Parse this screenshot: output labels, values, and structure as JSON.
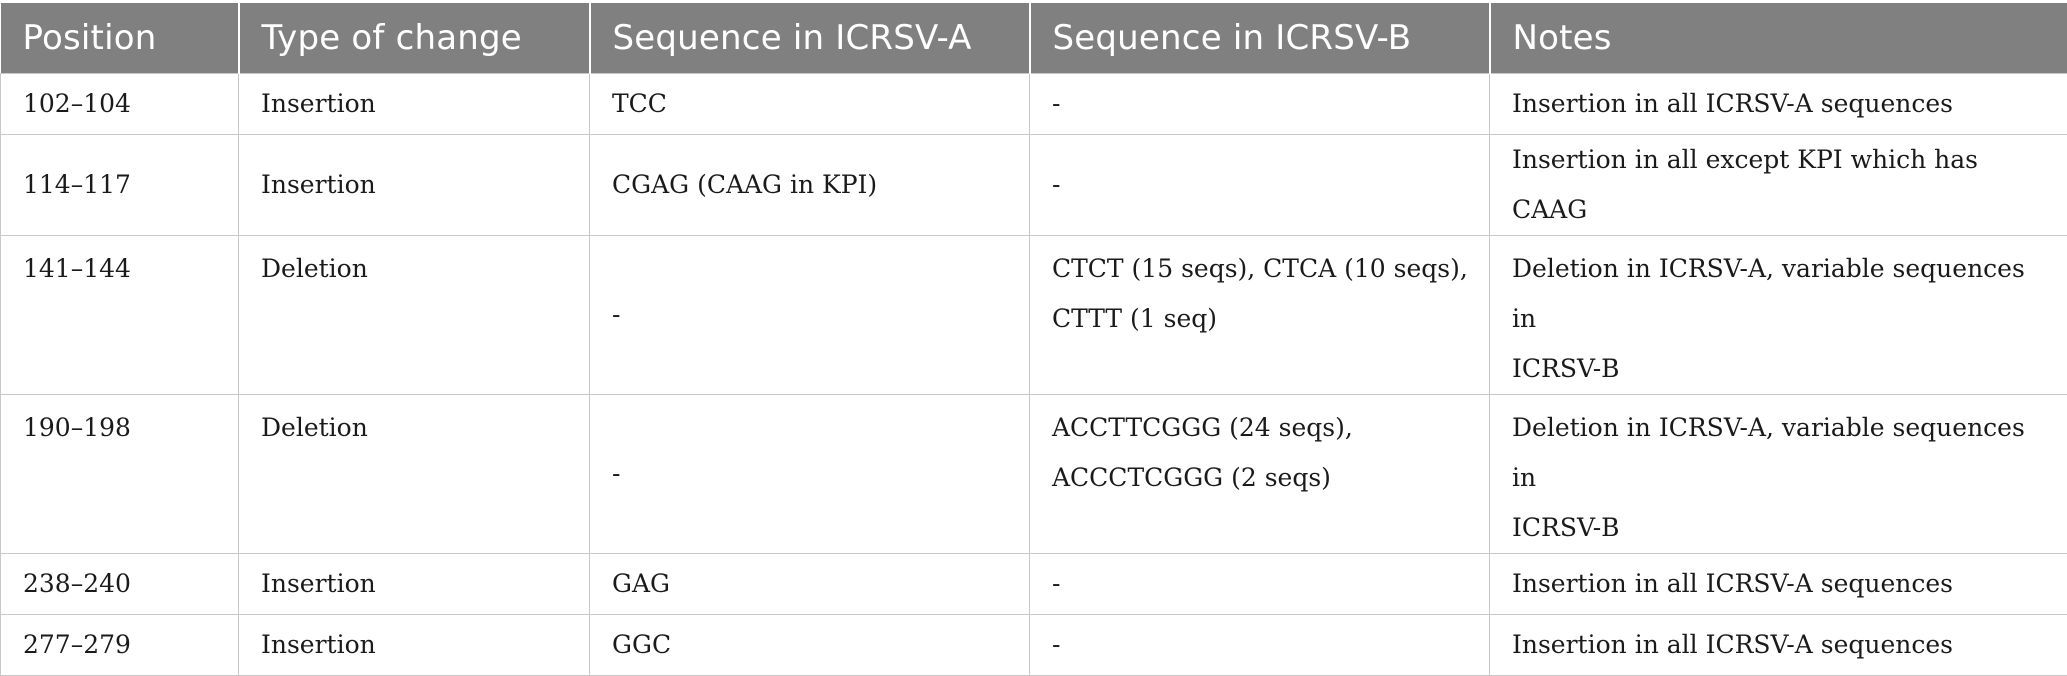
{
  "table": {
    "headers": [
      "Position",
      "Type of change",
      "Sequence in ICRSV-A",
      "Sequence in ICRSV-B",
      "Notes"
    ],
    "rows": [
      {
        "position": "102–104",
        "type": "Insertion",
        "seq_a": "TCC",
        "seq_b": "-",
        "notes": "Insertion in all ICRSV-A sequences"
      },
      {
        "position": "114–117",
        "type": "Insertion",
        "seq_a": "CGAG (CAAG in KPI)",
        "seq_b": "-",
        "notes": "Insertion in all except KPI which has CAAG"
      },
      {
        "position": "141–144",
        "type": "Deletion",
        "seq_a": "-",
        "seq_b_lines": [
          "CTCT (15 seqs), CTCA (10 seqs),",
          "CTTT (1 seq)"
        ],
        "notes_lines": [
          "Deletion in ICRSV-A, variable sequences in",
          "ICRSV-B"
        ]
      },
      {
        "position": "190–198",
        "type": "Deletion",
        "seq_a": "-",
        "seq_b_lines": [
          "ACCTTCGGG (24 seqs),",
          "ACCCTCGGG (2 seqs)"
        ],
        "notes_lines": [
          "Deletion in ICRSV-A, variable sequences in",
          "ICRSV-B"
        ]
      },
      {
        "position": "238–240",
        "type": "Insertion",
        "seq_a": "GAG",
        "seq_b": "-",
        "notes": "Insertion in all ICRSV-A sequences"
      },
      {
        "position": "277–279",
        "type": "Insertion",
        "seq_a": "GGC",
        "seq_b": "-",
        "notes": "Insertion in all ICRSV-A sequences"
      }
    ]
  },
  "colors": {
    "header_bg": "#808080",
    "header_text": "#ffffff",
    "border": "#c8c8c8"
  }
}
